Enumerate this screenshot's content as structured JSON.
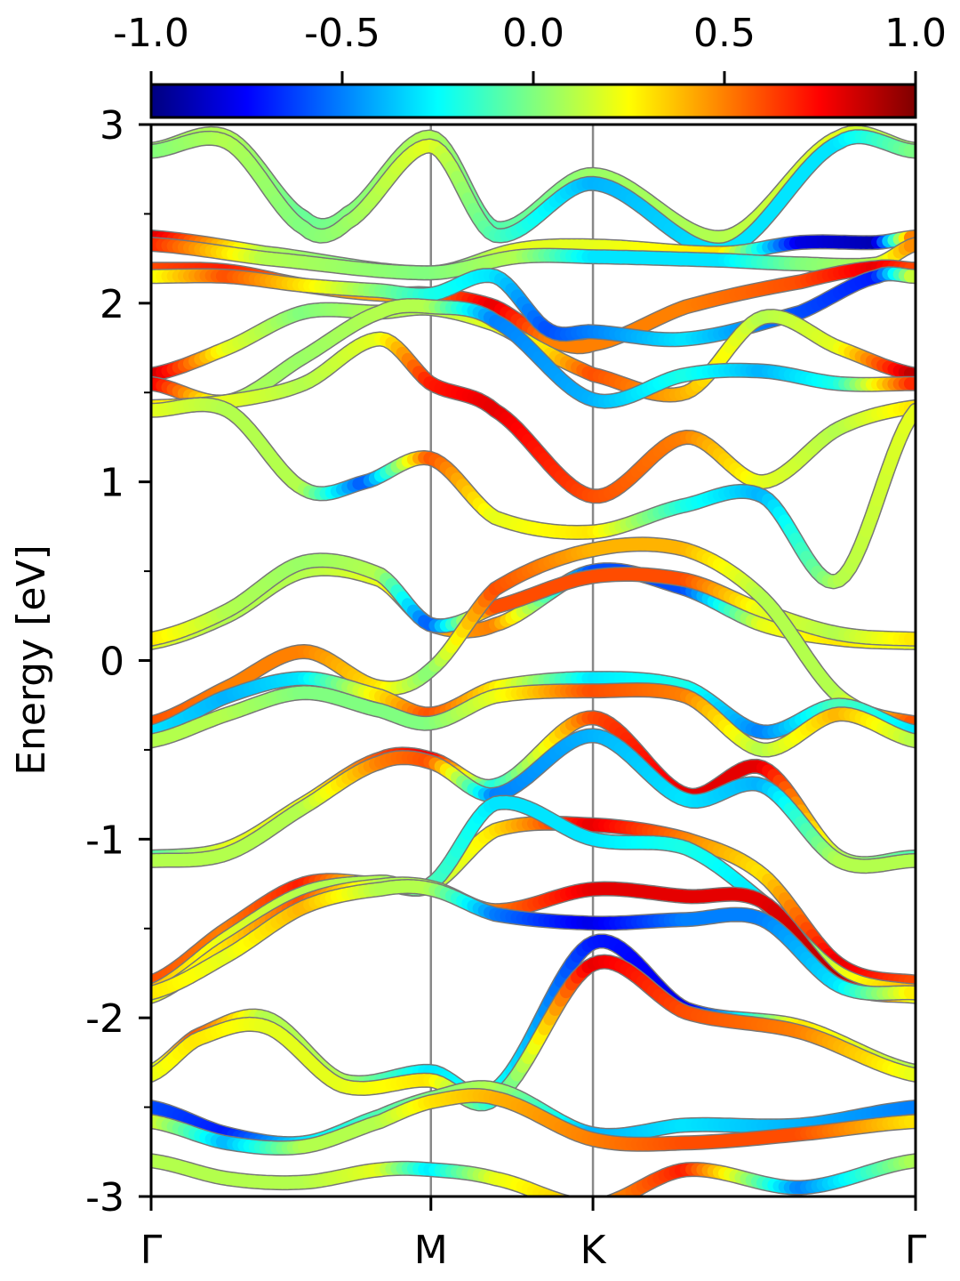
{
  "chart_data": {
    "type": "line",
    "title": "",
    "ylabel": "Energy [eV]",
    "xlabel": "",
    "ylim": [
      -3,
      3
    ],
    "yticks": [
      "3",
      "2",
      "1",
      "0",
      "-1",
      "-2",
      "-3"
    ],
    "yminor": [
      2.5,
      1.5,
      0.5,
      -0.5,
      -1.5,
      -2.5
    ],
    "kpath": [
      {
        "label": "Γ",
        "pos": 0.0
      },
      {
        "label": "M",
        "pos": 0.366
      },
      {
        "label": "K",
        "pos": 0.578
      },
      {
        "label": "Γ",
        "pos": 1.0
      }
    ],
    "colorbar": {
      "ticks": [
        "-1.0",
        "-0.5",
        "0.0",
        "0.5",
        "1.0"
      ],
      "range": [
        -1,
        1
      ],
      "colormap": "jet"
    },
    "bands": [
      {
        "x": [
          0,
          0.1,
          0.2,
          0.256,
          0.366,
          0.45,
          0.578,
          0.75,
          0.9,
          1.0
        ],
        "y": [
          2.86,
          2.93,
          2.48,
          2.5,
          2.93,
          2.42,
          2.72,
          2.37,
          2.93,
          2.86
        ],
        "c": [
          0.05,
          0.1,
          -0.05,
          0,
          0.1,
          -0.1,
          0.05,
          0.1,
          0.2,
          0.05
        ]
      },
      {
        "x": [
          0,
          0.1,
          0.2,
          0.256,
          0.366,
          0.45,
          0.578,
          0.75,
          0.9,
          1.0
        ],
        "y": [
          2.85,
          2.9,
          2.42,
          2.45,
          2.88,
          2.38,
          2.67,
          2.3,
          2.9,
          2.85
        ],
        "c": [
          0,
          0.1,
          0,
          0.05,
          0.2,
          -0.1,
          -0.4,
          -0.3,
          -0.3,
          0
        ]
      },
      {
        "x": [
          0,
          0.15,
          0.366,
          0.48,
          0.578,
          0.75,
          0.85,
          0.95,
          1.0
        ],
        "y": [
          2.37,
          2.28,
          2.17,
          2.3,
          2.32,
          2.28,
          2.34,
          2.34,
          2.37
        ],
        "c": [
          0.85,
          0.1,
          -0.1,
          0.2,
          0.2,
          0.3,
          -0.8,
          -0.9,
          0.6
        ]
      },
      {
        "x": [
          0,
          0.15,
          0.366,
          0.48,
          0.578,
          0.75,
          0.85,
          0.95,
          1.0
        ],
        "y": [
          2.33,
          2.25,
          2.17,
          2.26,
          2.26,
          2.24,
          2.22,
          2.22,
          2.33
        ],
        "c": [
          0.7,
          0.1,
          0,
          0.1,
          -0.3,
          -0.3,
          0,
          0.1,
          0.5
        ]
      },
      {
        "x": [
          0,
          0.1,
          0.2,
          0.3,
          0.366,
          0.45,
          0.52,
          0.578,
          0.7,
          0.85,
          0.95,
          1.0
        ],
        "y": [
          2.19,
          2.18,
          2.1,
          2.05,
          2.05,
          1.98,
          1.8,
          1.77,
          1.98,
          2.12,
          2.2,
          2.19
        ],
        "c": [
          0.6,
          0.7,
          0.5,
          0.4,
          0.5,
          0.8,
          0.5,
          0.5,
          0.5,
          0.6,
          0.8,
          0.6
        ]
      },
      {
        "x": [
          0,
          0.1,
          0.2,
          0.3,
          0.366,
          0.45,
          0.52,
          0.578,
          0.7,
          0.85,
          0.95,
          1.0
        ],
        "y": [
          2.15,
          2.15,
          2.1,
          2.07,
          2.05,
          2.15,
          1.85,
          1.84,
          1.8,
          1.95,
          2.15,
          2.15
        ],
        "c": [
          0.2,
          0.6,
          0.3,
          0,
          -0.2,
          -0.3,
          -0.6,
          -0.5,
          -0.3,
          -0.6,
          -0.7,
          0.2
        ]
      },
      {
        "x": [
          0,
          0.1,
          0.2,
          0.3,
          0.366,
          0.45,
          0.52,
          0.578,
          0.7,
          0.8,
          0.9,
          1.0
        ],
        "y": [
          1.6,
          1.75,
          1.95,
          1.95,
          1.97,
          1.88,
          1.72,
          1.6,
          1.5,
          1.92,
          1.75,
          1.6
        ],
        "c": [
          0.9,
          0.2,
          0,
          0.1,
          0.1,
          0.2,
          0.3,
          0.6,
          0.4,
          0.1,
          0.2,
          0.9
        ]
      },
      {
        "x": [
          0,
          0.1,
          0.2,
          0.3,
          0.366,
          0.45,
          0.578,
          0.7,
          0.8,
          0.9,
          1.0
        ],
        "y": [
          1.55,
          1.45,
          1.7,
          1.95,
          1.98,
          1.9,
          1.46,
          1.6,
          1.62,
          1.55,
          1.55
        ],
        "c": [
          0.8,
          0.1,
          0.05,
          0.1,
          0.1,
          -0.5,
          -0.4,
          -0.2,
          -0.4,
          -0.2,
          0.7
        ]
      },
      {
        "x": [
          0,
          0.1,
          0.2,
          0.3,
          0.366,
          0.45,
          0.578,
          0.7,
          0.8,
          0.9,
          1.0
        ],
        "y": [
          1.42,
          1.45,
          1.55,
          1.8,
          1.55,
          1.4,
          0.92,
          1.25,
          1.0,
          1.3,
          1.42
        ],
        "c": [
          0.3,
          0.2,
          0.1,
          0.2,
          0.7,
          0.8,
          0.6,
          0.5,
          0.2,
          0.1,
          0.3
        ]
      },
      {
        "x": [
          0,
          0.1,
          0.2,
          0.28,
          0.366,
          0.45,
          0.578,
          0.7,
          0.8,
          0.9,
          1.0
        ],
        "y": [
          1.4,
          1.4,
          0.96,
          1.0,
          1.13,
          0.8,
          0.72,
          0.87,
          0.92,
          0.45,
          1.4
        ],
        "c": [
          0.2,
          0.1,
          0.1,
          -0.6,
          0.6,
          0.2,
          0.3,
          -0.2,
          -0.4,
          0.1,
          0.2
        ]
      },
      {
        "x": [
          0,
          0.1,
          0.2,
          0.3,
          0.366,
          0.45,
          0.578,
          0.7,
          0.8,
          0.9,
          1.0
        ],
        "y": [
          0.1,
          0.25,
          0.5,
          0.45,
          0.2,
          0.2,
          0.5,
          0.4,
          0.2,
          0.12,
          0.1
        ],
        "c": [
          0.2,
          0.1,
          0.1,
          0.2,
          0.4,
          0.5,
          -0.6,
          -0.6,
          0.2,
          0.3,
          0.2
        ]
      },
      {
        "x": [
          0,
          0.1,
          0.2,
          0.3,
          0.366,
          0.45,
          0.578,
          0.7,
          0.8,
          0.9,
          1.0
        ],
        "y": [
          0.12,
          0.28,
          0.55,
          0.48,
          0.2,
          0.3,
          0.47,
          0.45,
          0.28,
          0.15,
          0.12
        ],
        "c": [
          0.3,
          0.1,
          0.05,
          0.1,
          -0.6,
          0.6,
          0.6,
          0.6,
          0.2,
          0.1,
          0.3
        ]
      },
      {
        "x": [
          0,
          0.1,
          0.2,
          0.3,
          0.366,
          0.45,
          0.578,
          0.7,
          0.8,
          0.9,
          1.0
        ],
        "y": [
          -0.35,
          -0.15,
          0.05,
          -0.15,
          -0.05,
          0.4,
          0.62,
          0.62,
          0.35,
          -0.2,
          -0.35
        ],
        "c": [
          0.6,
          0.5,
          0.5,
          0.3,
          0,
          0.6,
          0.4,
          0.4,
          0.1,
          0.1,
          0.6
        ]
      },
      {
        "x": [
          0,
          0.1,
          0.2,
          0.3,
          0.366,
          0.45,
          0.578,
          0.7,
          0.8,
          0.9,
          1.0
        ],
        "y": [
          -0.4,
          -0.2,
          -0.1,
          -0.2,
          -0.3,
          -0.15,
          -0.1,
          -0.15,
          -0.4,
          -0.25,
          -0.4
        ],
        "c": [
          -0.3,
          -0.4,
          -0.3,
          0.3,
          0.6,
          0.3,
          -0.3,
          -0.2,
          -0.5,
          -0.1,
          -0.3
        ]
      },
      {
        "x": [
          0,
          0.1,
          0.2,
          0.3,
          0.366,
          0.45,
          0.578,
          0.7,
          0.8,
          0.9,
          1.0
        ],
        "y": [
          -0.45,
          -0.3,
          -0.18,
          -0.28,
          -0.35,
          -0.2,
          -0.17,
          -0.2,
          -0.5,
          -0.3,
          -0.45
        ],
        "c": [
          0.1,
          0.1,
          0,
          0,
          0,
          0.2,
          0.6,
          0.5,
          0.1,
          0.4,
          0.1
        ]
      },
      {
        "x": [
          0,
          0.1,
          0.2,
          0.3,
          0.366,
          0.45,
          0.578,
          0.7,
          0.8,
          0.9,
          1.0
        ],
        "y": [
          -1.1,
          -1.05,
          -0.8,
          -0.55,
          -0.55,
          -0.7,
          -0.32,
          -0.75,
          -0.6,
          -1.1,
          -1.1
        ],
        "c": [
          -0.1,
          0.2,
          0.2,
          0.6,
          0.8,
          -0.2,
          0.6,
          0.8,
          0.8,
          0.1,
          -0.1
        ]
      },
      {
        "x": [
          0,
          0.1,
          0.2,
          0.3,
          0.366,
          0.45,
          0.578,
          0.7,
          0.8,
          0.9,
          1.0
        ],
        "y": [
          -1.12,
          -1.08,
          -0.82,
          -0.57,
          -0.57,
          -0.75,
          -0.42,
          -0.78,
          -0.7,
          -1.12,
          -1.12
        ],
        "c": [
          0.1,
          0.1,
          0.1,
          0.5,
          0.6,
          -0.5,
          -0.4,
          -0.3,
          -0.4,
          0.1,
          0.1
        ]
      },
      {
        "x": [
          0,
          0.1,
          0.2,
          0.3,
          0.366,
          0.45,
          0.578,
          0.7,
          0.8,
          0.9,
          1.0
        ],
        "y": [
          -1.8,
          -1.5,
          -1.25,
          -1.25,
          -1.26,
          -0.95,
          -0.92,
          -1.0,
          -1.2,
          -1.7,
          -1.8
        ],
        "c": [
          0.6,
          0.5,
          0.7,
          0.2,
          0.1,
          0.3,
          0.8,
          0.5,
          0.3,
          0.8,
          0.6
        ]
      },
      {
        "x": [
          0,
          0.1,
          0.2,
          0.3,
          0.366,
          0.45,
          0.578,
          0.7,
          0.8,
          0.9,
          1.0
        ],
        "y": [
          -1.85,
          -1.55,
          -1.3,
          -1.24,
          -1.25,
          -0.8,
          -1.0,
          -1.05,
          -1.35,
          -1.75,
          -1.85
        ],
        "c": [
          0.4,
          0.2,
          0.1,
          0.1,
          -0.1,
          -0.3,
          -0.3,
          -0.2,
          -0.3,
          0.2,
          0.4
        ]
      },
      {
        "x": [
          0,
          0.1,
          0.2,
          0.3,
          0.366,
          0.45,
          0.578,
          0.7,
          0.8,
          0.9,
          1.0
        ],
        "y": [
          -1.88,
          -1.6,
          -1.35,
          -1.26,
          -1.27,
          -1.4,
          -1.28,
          -1.32,
          -1.35,
          -1.8,
          -1.88
        ],
        "c": [
          0.2,
          0.3,
          0.6,
          0.1,
          0.1,
          0.5,
          0.8,
          0.8,
          0.8,
          0.9,
          0.2
        ]
      },
      {
        "x": [
          0,
          0.1,
          0.2,
          0.3,
          0.366,
          0.45,
          0.578,
          0.7,
          0.8,
          0.9,
          1.0
        ],
        "y": [
          -1.86,
          -1.65,
          -1.38,
          -1.28,
          -1.28,
          -1.42,
          -1.47,
          -1.45,
          -1.45,
          -1.82,
          -1.86
        ],
        "c": [
          0.3,
          0.2,
          0.4,
          0.1,
          0.1,
          -0.5,
          -0.8,
          -0.5,
          -0.5,
          -0.3,
          0.3
        ]
      },
      {
        "x": [
          0,
          0.06,
          0.15,
          0.25,
          0.366,
          0.45,
          0.578,
          0.7,
          0.85,
          1.0
        ],
        "y": [
          -2.3,
          -2.1,
          -2.0,
          -2.35,
          -2.3,
          -2.4,
          -1.58,
          -1.95,
          -2.05,
          -2.3
        ],
        "c": [
          0.1,
          0.6,
          0.1,
          0.1,
          -0.3,
          -0.2,
          -0.7,
          -0.8,
          0.3,
          0.1
        ]
      },
      {
        "x": [
          0,
          0.06,
          0.15,
          0.25,
          0.366,
          0.45,
          0.578,
          0.7,
          0.85,
          1.0
        ],
        "y": [
          -2.32,
          -2.12,
          -2.05,
          -2.38,
          -2.35,
          -2.45,
          -1.7,
          -1.97,
          -2.08,
          -2.32
        ],
        "c": [
          0.2,
          0.3,
          0.2,
          0.2,
          0.3,
          -0.2,
          0.8,
          0.6,
          0.5,
          0.2
        ]
      },
      {
        "x": [
          0,
          0.1,
          0.2,
          0.3,
          0.366,
          0.45,
          0.578,
          0.7,
          0.85,
          1.0
        ],
        "y": [
          -2.5,
          -2.65,
          -2.7,
          -2.55,
          -2.45,
          -2.4,
          -2.65,
          -2.6,
          -2.6,
          -2.5
        ],
        "c": [
          -0.6,
          -0.7,
          -0.3,
          -0.1,
          0,
          0.1,
          -0.4,
          -0.3,
          -0.4,
          -0.5
        ]
      },
      {
        "x": [
          0,
          0.1,
          0.2,
          0.3,
          0.366,
          0.45,
          0.578,
          0.7,
          0.85,
          1.0
        ],
        "y": [
          -2.58,
          -2.7,
          -2.72,
          -2.58,
          -2.47,
          -2.45,
          -2.68,
          -2.7,
          -2.65,
          -2.58
        ],
        "c": [
          0.2,
          -0.4,
          0.1,
          0.1,
          0.3,
          0.4,
          0.5,
          0.6,
          0.6,
          0.3
        ]
      },
      {
        "x": [
          0,
          0.1,
          0.2,
          0.3,
          0.366,
          0.45,
          0.578,
          0.7,
          0.85,
          1.0
        ],
        "y": [
          -2.8,
          -2.9,
          -2.92,
          -2.85,
          -2.85,
          -2.9,
          -3.05,
          -2.85,
          -2.95,
          -2.8
        ],
        "c": [
          0.1,
          0.1,
          0.1,
          0.2,
          -0.3,
          0.2,
          0.4,
          0.7,
          -0.5,
          0.1
        ]
      }
    ]
  }
}
